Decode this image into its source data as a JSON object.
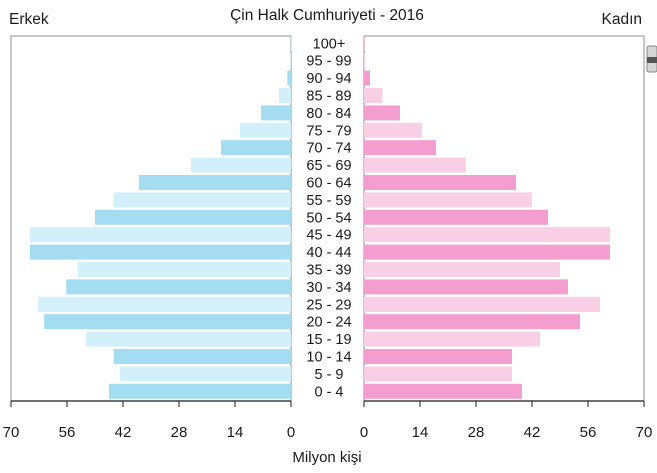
{
  "chart_data": {
    "type": "bar",
    "subtype": "population-pyramid",
    "title": "Çin Halk Cumhuriyeti - 2016",
    "left_label": "Erkek",
    "right_label": "Kadın",
    "xlabel": "Milyon kişi",
    "xlim": [
      0,
      70
    ],
    "x_ticks": [
      "70",
      "56",
      "42",
      "28",
      "14",
      "0"
    ],
    "x_ticks_right": [
      "0",
      "14",
      "28",
      "42",
      "56",
      "70"
    ],
    "categories": [
      "0 - 4",
      "5 - 9",
      "10 - 14",
      "15 - 19",
      "20 - 24",
      "25 - 29",
      "30 - 34",
      "35 - 39",
      "40 - 44",
      "45 - 49",
      "50 - 54",
      "55 - 59",
      "60 - 64",
      "65 - 69",
      "70 - 74",
      "75 - 79",
      "80 - 84",
      "85 - 89",
      "90 - 94",
      "95 - 99",
      "100+"
    ],
    "series": [
      {
        "name": "Erkek",
        "values": [
          45.5,
          42.8,
          44.3,
          51.2,
          61.7,
          63.2,
          56.2,
          53.3,
          65.3,
          65.3,
          49.0,
          44.4,
          38.0,
          25.0,
          17.5,
          12.8,
          7.5,
          3.0,
          0.9,
          0.2,
          0.05
        ],
        "colors": [
          "#a4dcf2",
          "#d1f0fa"
        ]
      },
      {
        "name": "Kadın",
        "values": [
          39.5,
          37.0,
          37.0,
          44.0,
          54.0,
          59.0,
          51.0,
          49.0,
          61.5,
          61.5,
          46.0,
          42.0,
          38.0,
          25.5,
          18.0,
          14.5,
          9.0,
          4.6,
          1.5,
          0.3,
          0.05
        ],
        "colors": [
          "#f49dcf",
          "#f9cfe6"
        ]
      }
    ],
    "grid": false
  }
}
